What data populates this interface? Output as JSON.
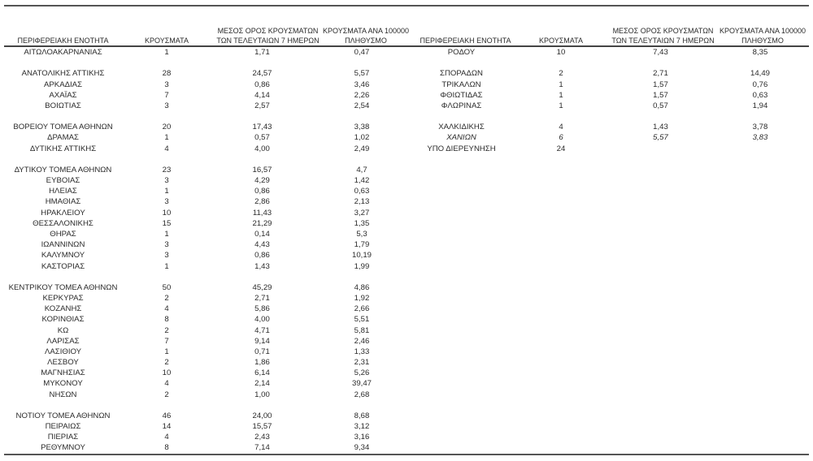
{
  "headers": {
    "region": "ΠΕΡΙΦΕΡΕΙΑΚΗ ΕΝΟΤΗΤΑ",
    "cases": "ΚΡΟΥΣΜΑΤΑ",
    "avg7": "ΜΕΣΟΣ ΟΡΟΣ ΚΡΟΥΣΜΑΤΩΝ ΤΩΝ ΤΕΛΕΥΤΑΙΩΝ 7 ΗΜΕΡΩΝ",
    "per100k": "ΚΡΟΥΣΜΑΤΑ ΑΝΑ 100000 ΠΛΗΘΥΣΜΟ"
  },
  "left_rows": [
    {
      "region": "ΑΙΤΩΛΟΑΚΑΡΝΑΝΙΑΣ",
      "cases": "1",
      "avg7": "1,71",
      "per100k": "0,47"
    },
    null,
    {
      "region": "ΑΝΑΤΟΛΙΚΗΣ ΑΤΤΙΚΗΣ",
      "cases": "28",
      "avg7": "24,57",
      "per100k": "5,57"
    },
    {
      "region": "ΑΡΚΑΔΙΑΣ",
      "cases": "3",
      "avg7": "0,86",
      "per100k": "3,46"
    },
    {
      "region": "ΑΧΑΪΑΣ",
      "cases": "7",
      "avg7": "4,14",
      "per100k": "2,26"
    },
    {
      "region": "ΒΟΙΩΤΙΑΣ",
      "cases": "3",
      "avg7": "2,57",
      "per100k": "2,54"
    },
    null,
    {
      "region": "ΒΟΡΕΙΟΥ ΤΟΜΕΑ ΑΘΗΝΩΝ",
      "cases": "20",
      "avg7": "17,43",
      "per100k": "3,38"
    },
    {
      "region": "ΔΡΑΜΑΣ",
      "cases": "1",
      "avg7": "0,57",
      "per100k": "1,02"
    },
    {
      "region": "ΔΥΤΙΚΗΣ ΑΤΤΙΚΗΣ",
      "cases": "4",
      "avg7": "4,00",
      "per100k": "2,49"
    },
    null,
    {
      "region": "ΔΥΤΙΚΟΥ ΤΟΜΕΑ ΑΘΗΝΩΝ",
      "cases": "23",
      "avg7": "16,57",
      "per100k": "4,7"
    },
    {
      "region": "ΕΥΒΟΙΑΣ",
      "cases": "3",
      "avg7": "4,29",
      "per100k": "1,42"
    },
    {
      "region": "ΗΛΕΙΑΣ",
      "cases": "1",
      "avg7": "0,86",
      "per100k": "0,63"
    },
    {
      "region": "ΗΜΑΘΙΑΣ",
      "cases": "3",
      "avg7": "2,86",
      "per100k": "2,13"
    },
    {
      "region": "ΗΡΑΚΛΕΙΟΥ",
      "cases": "10",
      "avg7": "11,43",
      "per100k": "3,27"
    },
    {
      "region": "ΘΕΣΣΑΛΟΝΙΚΗΣ",
      "cases": "15",
      "avg7": "21,29",
      "per100k": "1,35"
    },
    {
      "region": "ΘΗΡΑΣ",
      "cases": "1",
      "avg7": "0,14",
      "per100k": "5,3"
    },
    {
      "region": "ΙΩΑΝΝΙΝΩΝ",
      "cases": "3",
      "avg7": "4,43",
      "per100k": "1,79"
    },
    {
      "region": "ΚΑΛΥΜΝΟΥ",
      "cases": "3",
      "avg7": "0,86",
      "per100k": "10,19"
    },
    {
      "region": "ΚΑΣΤΟΡΙΑΣ",
      "cases": "1",
      "avg7": "1,43",
      "per100k": "1,99"
    },
    null,
    {
      "region": "ΚΕΝΤΡΙΚΟΥ ΤΟΜΕΑ ΑΘΗΝΩΝ",
      "cases": "50",
      "avg7": "45,29",
      "per100k": "4,86"
    },
    {
      "region": "ΚΕΡΚΥΡΑΣ",
      "cases": "2",
      "avg7": "2,71",
      "per100k": "1,92"
    },
    {
      "region": "ΚΟΖΑΝΗΣ",
      "cases": "4",
      "avg7": "5,86",
      "per100k": "2,66"
    },
    {
      "region": "ΚΟΡΙΝΘΙΑΣ",
      "cases": "8",
      "avg7": "4,00",
      "per100k": "5,51"
    },
    {
      "region": "ΚΩ",
      "cases": "2",
      "avg7": "4,71",
      "per100k": "5,81"
    },
    {
      "region": "ΛΑΡΙΣΑΣ",
      "cases": "7",
      "avg7": "9,14",
      "per100k": "2,46"
    },
    {
      "region": "ΛΑΣΙΘΙΟΥ",
      "cases": "1",
      "avg7": "0,71",
      "per100k": "1,33"
    },
    {
      "region": "ΛΕΣΒΟΥ",
      "cases": "2",
      "avg7": "1,86",
      "per100k": "2,31"
    },
    {
      "region": "ΜΑΓΝΗΣΙΑΣ",
      "cases": "10",
      "avg7": "6,14",
      "per100k": "5,26"
    },
    {
      "region": "ΜΥΚΟΝΟΥ",
      "cases": "4",
      "avg7": "2,14",
      "per100k": "39,47"
    },
    {
      "region": "ΝΗΣΩΝ",
      "cases": "2",
      "avg7": "1,00",
      "per100k": "2,68"
    },
    null,
    {
      "region": "ΝΟΤΙΟΥ ΤΟΜΕΑ ΑΘΗΝΩΝ",
      "cases": "46",
      "avg7": "24,00",
      "per100k": "8,68"
    },
    {
      "region": "ΠΕΙΡΑΙΩΣ",
      "cases": "14",
      "avg7": "15,57",
      "per100k": "3,12"
    },
    {
      "region": "ΠΙΕΡΙΑΣ",
      "cases": "4",
      "avg7": "2,43",
      "per100k": "3,16"
    },
    {
      "region": "ΡΕΘΥΜΝΟΥ",
      "cases": "8",
      "avg7": "7,14",
      "per100k": "9,34"
    }
  ],
  "right_rows": [
    {
      "region": "ΡΟΔΟΥ",
      "cases": "10",
      "avg7": "7,43",
      "per100k": "8,35"
    },
    null,
    {
      "region": "ΣΠΟΡΑΔΩΝ",
      "cases": "2",
      "avg7": "2,71",
      "per100k": "14,49"
    },
    {
      "region": "ΤΡΙΚΑΛΩΝ",
      "cases": "1",
      "avg7": "1,57",
      "per100k": "0,76"
    },
    {
      "region": "ΦΘΙΩΤΙΔΑΣ",
      "cases": "1",
      "avg7": "1,57",
      "per100k": "0,63"
    },
    {
      "region": "ΦΛΩΡΙΝΑΣ",
      "cases": "1",
      "avg7": "0,57",
      "per100k": "1,94"
    },
    null,
    {
      "region": "ΧΑΛΚΙΔΙΚΗΣ",
      "cases": "4",
      "avg7": "1,43",
      "per100k": "3,78"
    },
    {
      "region": "ΧΑΝΙΩΝ",
      "cases": "6",
      "avg7": "5,57",
      "per100k": "3,83",
      "italic": true
    },
    {
      "region": "ΥΠΟ ΔΙΕΡΕΥΝΗΣΗ",
      "cases": "24",
      "avg7": "",
      "per100k": ""
    }
  ]
}
